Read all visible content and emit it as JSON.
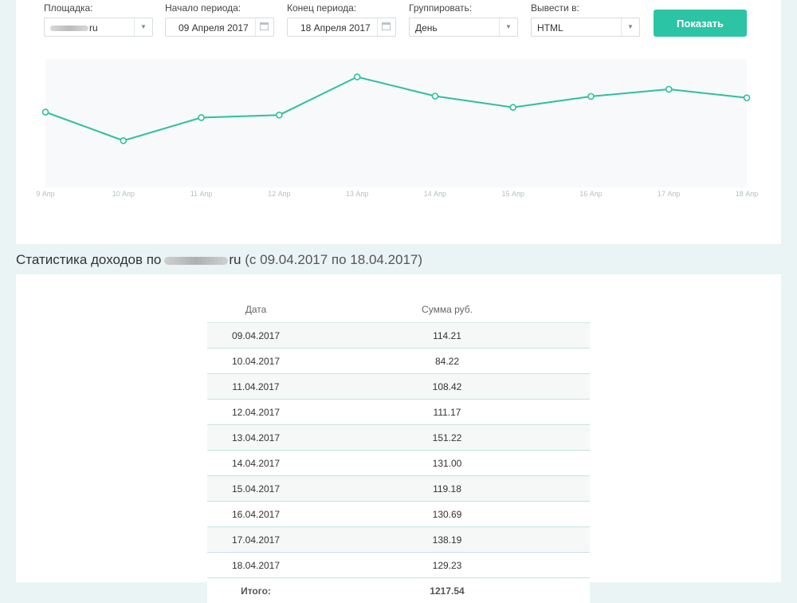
{
  "filters": {
    "site": {
      "label": "Площадка:",
      "value": "ru"
    },
    "period_start": {
      "label": "Начало периода:",
      "value": "09 Апреля 2017"
    },
    "period_end": {
      "label": "Конец периода:",
      "value": "18 Апреля 2017"
    },
    "group_by": {
      "label": "Группировать:",
      "value": "День"
    },
    "output": {
      "label": "Вывести в:",
      "value": "HTML"
    }
  },
  "show_button": "Показать",
  "colors": {
    "accent": "#2bc4a4",
    "line": "#2fbf9f",
    "chart_bg": "#f7f9fa"
  },
  "chart_data": {
    "type": "line",
    "categories": [
      "9 Апр",
      "10 Апр",
      "11 Апр",
      "12 Апр",
      "13 Апр",
      "14 Апр",
      "15 Апр",
      "16 Апр",
      "17 Апр",
      "18 Апр"
    ],
    "values": [
      114.21,
      84.22,
      108.42,
      111.17,
      151.22,
      131.0,
      119.18,
      130.69,
      138.19,
      129.23
    ],
    "title": "",
    "xlabel": "",
    "ylabel": "",
    "grid": false,
    "legend": "none"
  },
  "report": {
    "title_prefix": "Статистика доходов по",
    "domain_suffix": "ru",
    "period": "(с 09.04.2017 по 18.04.2017)",
    "columns": [
      "Дата",
      "Сумма руб."
    ],
    "rows": [
      [
        "09.04.2017",
        "114.21"
      ],
      [
        "10.04.2017",
        "84.22"
      ],
      [
        "11.04.2017",
        "108.42"
      ],
      [
        "12.04.2017",
        "111.17"
      ],
      [
        "13.04.2017",
        "151.22"
      ],
      [
        "14.04.2017",
        "131.00"
      ],
      [
        "15.04.2017",
        "119.18"
      ],
      [
        "16.04.2017",
        "130.69"
      ],
      [
        "17.04.2017",
        "138.19"
      ],
      [
        "18.04.2017",
        "129.23"
      ]
    ],
    "total_label": "Итого:",
    "total_value": "1217.54"
  }
}
